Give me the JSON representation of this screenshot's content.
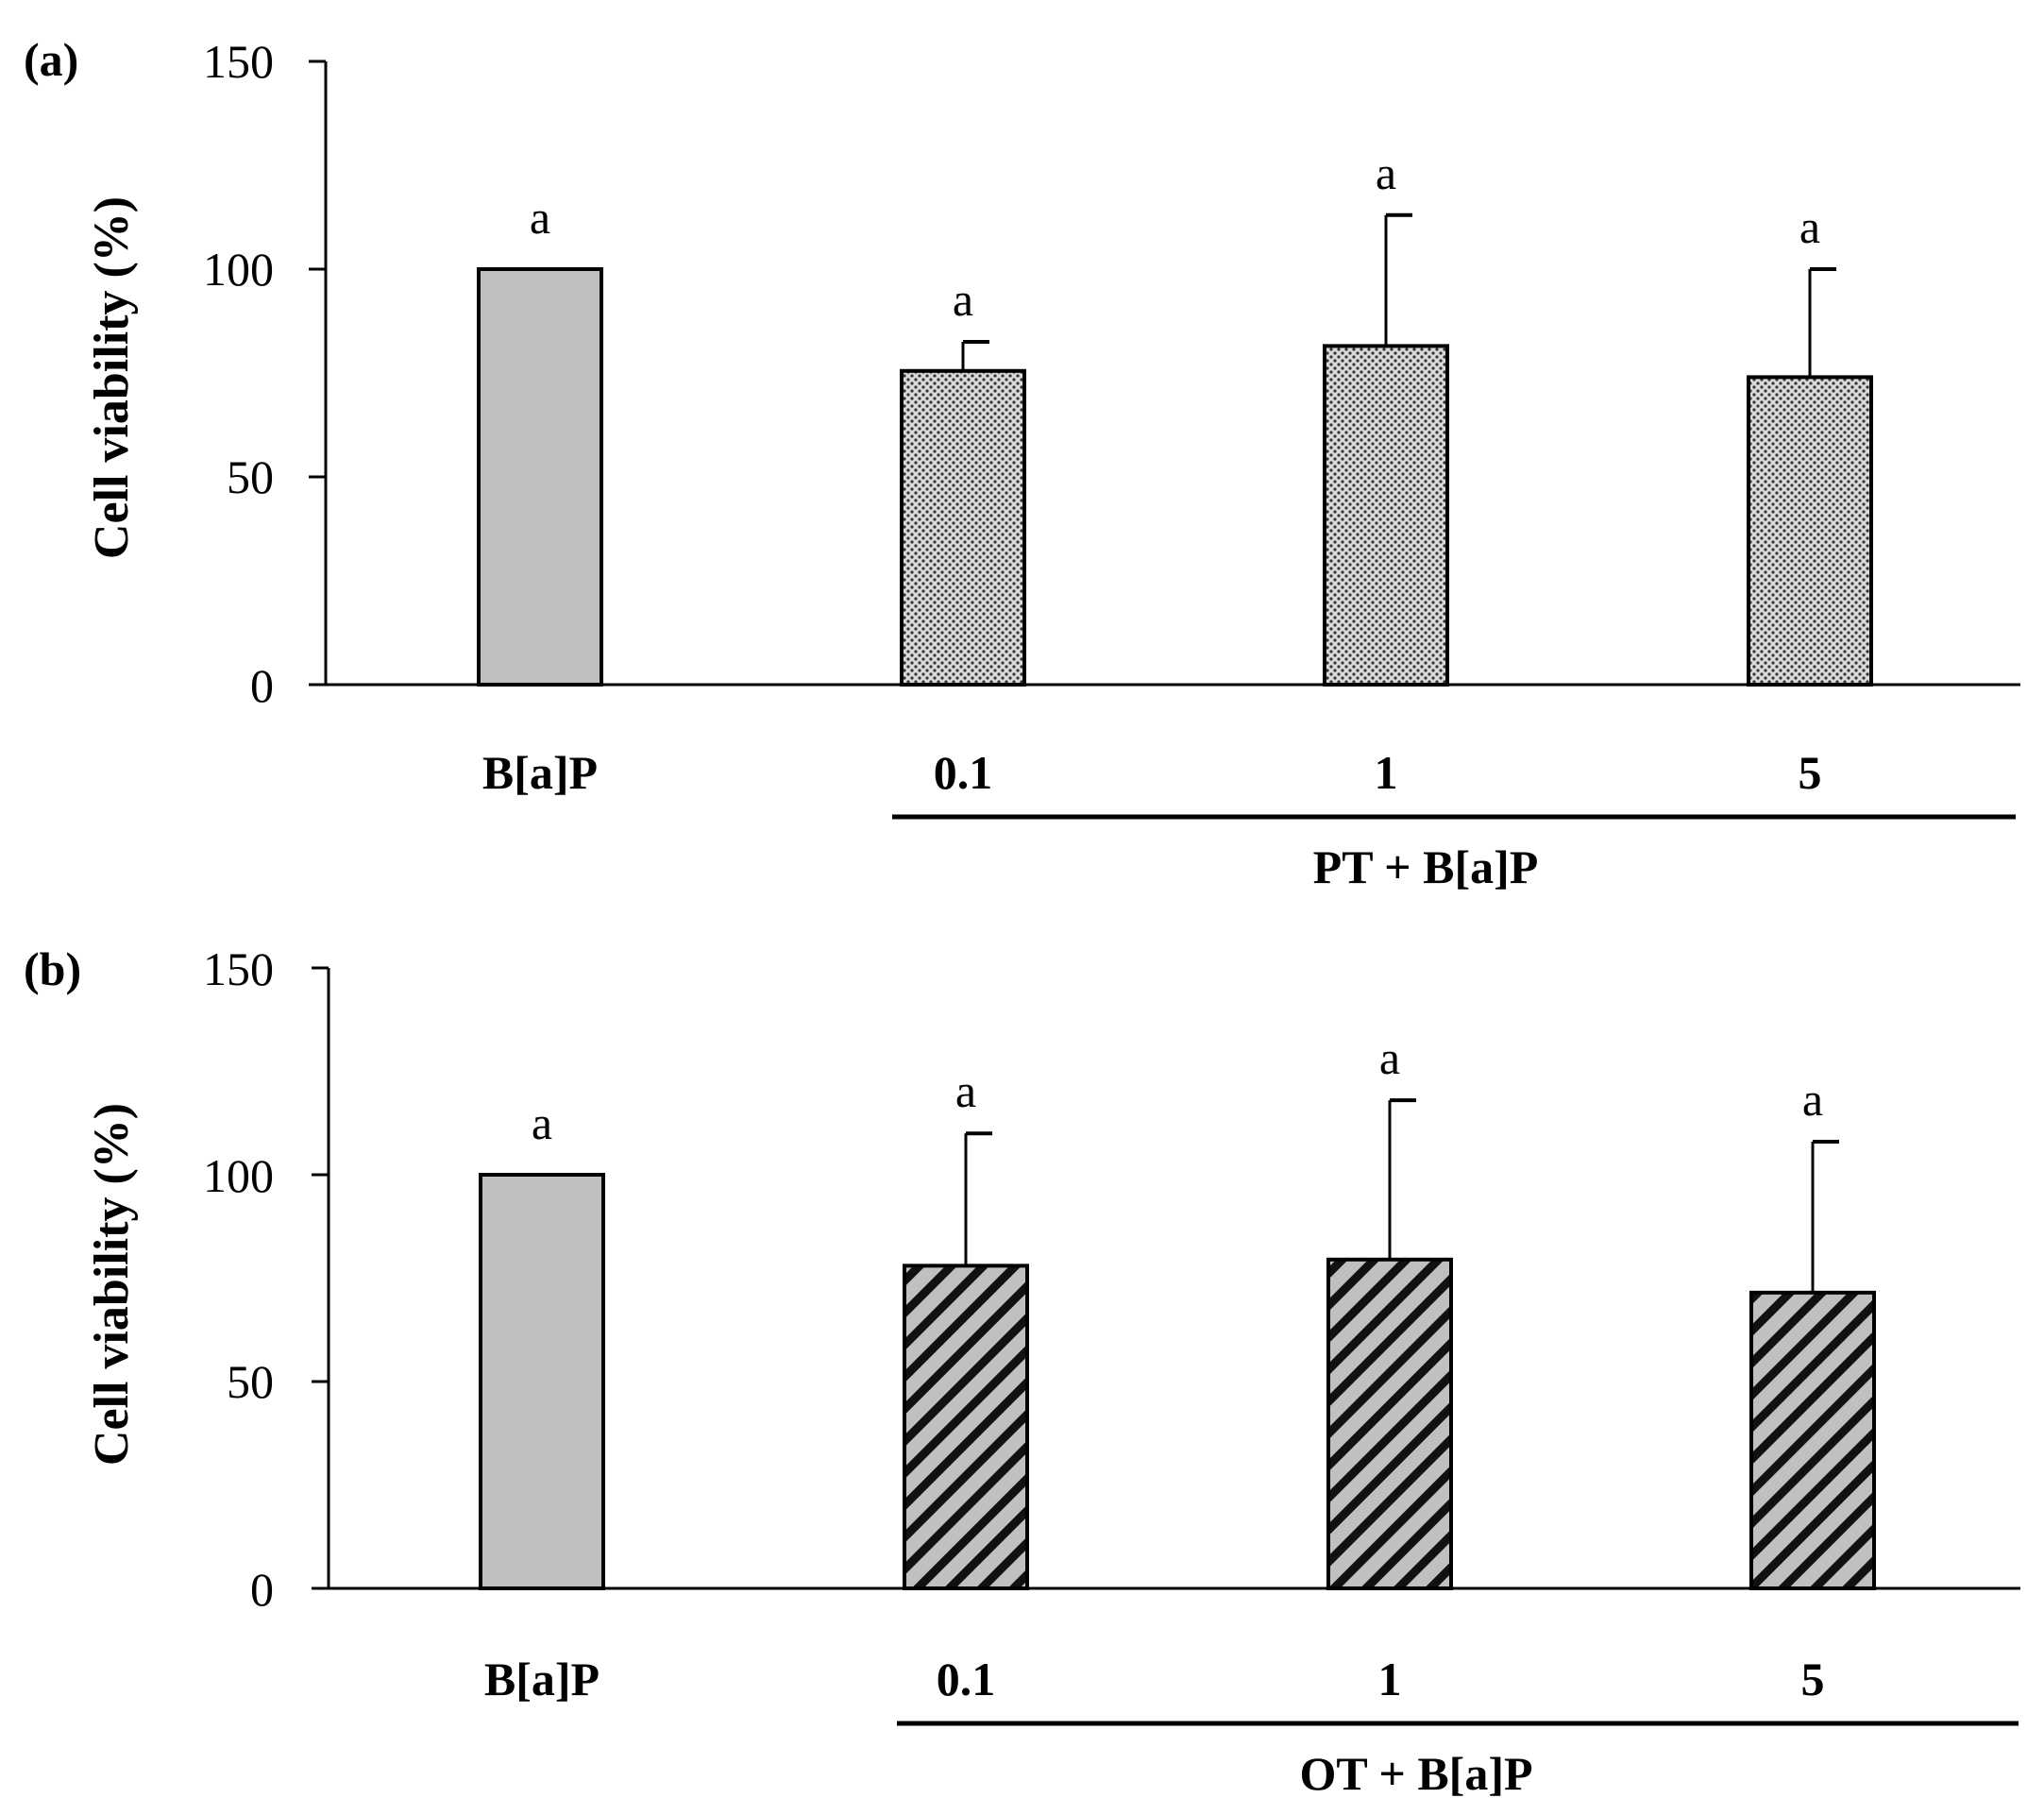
{
  "chart_data": [
    {
      "panel_label": "(a)",
      "type": "bar",
      "ylabel": "Cell viability (%)",
      "ylim": [
        0,
        150
      ],
      "yticks": [
        "0",
        "50",
        "100",
        "150"
      ],
      "categories": [
        "B[a]P",
        "0.1",
        "1",
        "5"
      ],
      "group_label": "PT + B[a]P",
      "values": [
        100,
        75.5,
        81.5,
        74
      ],
      "errors": [
        0,
        7,
        31.5,
        26
      ],
      "significance": [
        "a",
        "a",
        "a",
        "a"
      ],
      "patterns": [
        "solid",
        "dots",
        "dots",
        "dots"
      ],
      "fill_color": "#c0c0c0"
    },
    {
      "panel_label": "(b)",
      "type": "bar",
      "ylabel": "Cell viability (%)",
      "ylim": [
        0,
        150
      ],
      "yticks": [
        "0",
        "50",
        "100",
        "150"
      ],
      "categories": [
        "B[a]P",
        "0.1",
        "1",
        "5"
      ],
      "group_label": "OT + B[a]P",
      "values": [
        100,
        78,
        79.5,
        71.5
      ],
      "errors": [
        0,
        32,
        38.5,
        36.5
      ],
      "significance": [
        "a",
        "a",
        "a",
        "a"
      ],
      "patterns": [
        "solid",
        "hatch",
        "hatch",
        "hatch"
      ],
      "fill_color": "#c0c0c0"
    }
  ]
}
